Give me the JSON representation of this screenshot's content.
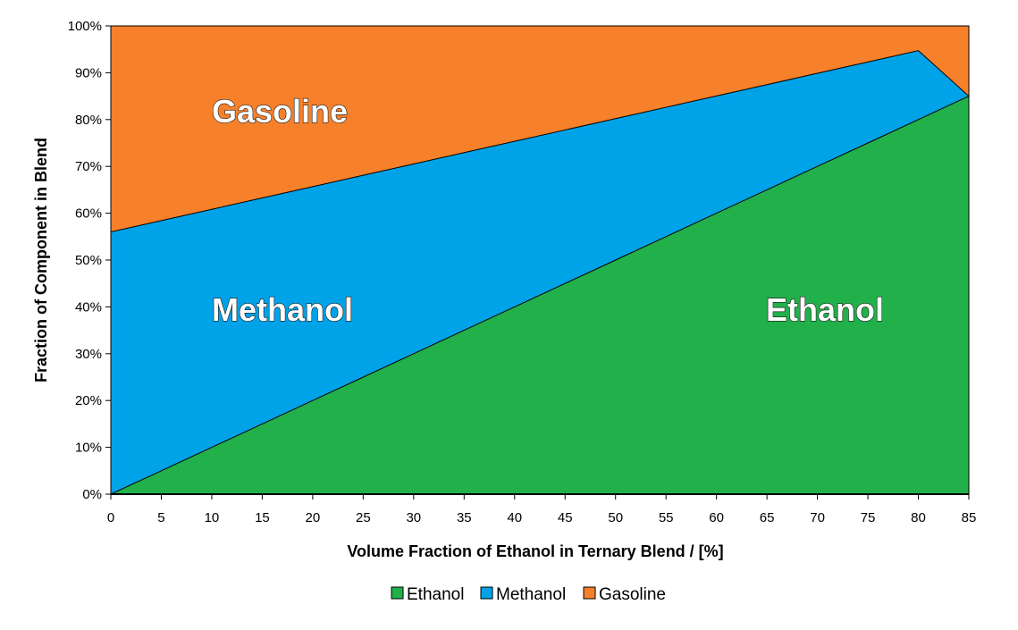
{
  "chart_data": {
    "type": "area",
    "stacked": true,
    "x": [
      0,
      5,
      10,
      15,
      20,
      25,
      30,
      35,
      40,
      45,
      50,
      55,
      60,
      65,
      70,
      75,
      80,
      85
    ],
    "x_tick_labels": [
      "0",
      "5",
      "10",
      "15",
      "20",
      "25",
      "30",
      "35",
      "40",
      "45",
      "50",
      "55",
      "60",
      "65",
      "70",
      "75",
      "80",
      "85"
    ],
    "y_tick_labels": [
      "0%",
      "10%",
      "20%",
      "30%",
      "40%",
      "50%",
      "60%",
      "70%",
      "80%",
      "90%",
      "100%"
    ],
    "xlim": [
      0,
      85
    ],
    "ylim": [
      0,
      100
    ],
    "xlabel": "Volume Fraction of Ethanol in Ternary Blend / [%]",
    "ylabel": "Fraction of Component in Blend",
    "legend_position": "bottom-center",
    "grid": false,
    "series": [
      {
        "name": "Ethanol",
        "color": "#22b04b",
        "values": [
          0,
          5,
          10,
          15,
          20,
          25,
          30,
          35,
          40,
          45,
          50,
          55,
          60,
          65,
          70,
          75,
          80,
          85
        ]
      },
      {
        "name": "Methanol",
        "color": "#00a2e8",
        "values": [
          56,
          53.42,
          50.84,
          48.26,
          45.68,
          43.1,
          40.52,
          37.94,
          35.36,
          32.78,
          30.2,
          27.62,
          25.04,
          22.46,
          19.88,
          17.3,
          14.72,
          0
        ]
      },
      {
        "name": "Gasoline",
        "color": "#f7802a",
        "values": [
          44,
          41.58,
          39.16,
          36.74,
          34.32,
          31.9,
          29.48,
          27.06,
          24.64,
          22.22,
          19.8,
          17.38,
          14.96,
          12.54,
          10.12,
          7.7,
          5.28,
          15
        ]
      }
    ],
    "region_labels": [
      {
        "series": "Gasoline",
        "text": "Gasoline"
      },
      {
        "series": "Methanol",
        "text": "Methanol"
      },
      {
        "series": "Ethanol",
        "text": "Ethanol"
      }
    ]
  }
}
